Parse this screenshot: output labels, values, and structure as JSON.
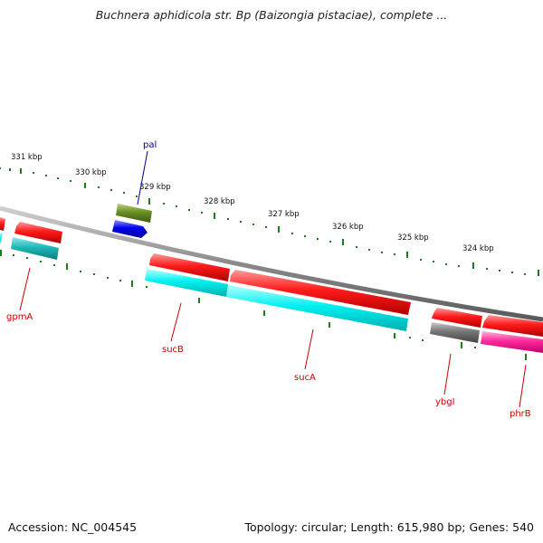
{
  "title": "Buchnera aphidicola str. Bp (Baizongia pistaciae), complete ...",
  "footer": {
    "accession": "Accession: NC_004545",
    "summary": "Topology: circular; Length: 615,980 bp; Genes: 540"
  },
  "colors": {
    "backbone": "#8a8a8a",
    "tick": "#1f7a1f",
    "gene_red": "#ee0000",
    "gene_cyan": "#00d8d8",
    "gene_teal": "#19b3b3",
    "gene_olive": "#6b8e23",
    "gene_blue": "#0000ee",
    "gene_gray": "#707070",
    "gene_magenta": "#ff1493",
    "label_red": "#cc0000",
    "label_blue": "#000099"
  },
  "scale_labels": [
    "331 kbp",
    "330 kbp",
    "329 kbp",
    "328 kbp",
    "327 kbp",
    "326 kbp",
    "325 kbp",
    "324 kbp"
  ],
  "gene_labels": [
    {
      "name": "pal",
      "color": "blue"
    },
    {
      "name": "gpmA",
      "color": "red"
    },
    {
      "name": "sucB",
      "color": "red"
    },
    {
      "name": "sucA",
      "color": "red"
    },
    {
      "name": "ybgI",
      "color": "red"
    },
    {
      "name": "phrB",
      "color": "red"
    }
  ],
  "icons": [
    "gene-arrow-icon"
  ]
}
